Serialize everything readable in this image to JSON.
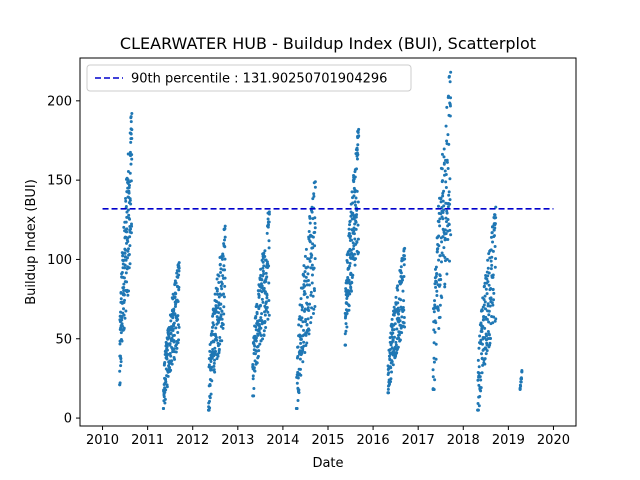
{
  "chart_data": {
    "type": "scatter",
    "title": "CLEARWATER HUB - Buildup Index (BUI), Scatterplot",
    "xlabel": "Date",
    "ylabel": "Buildup Index (BUI)",
    "xlim": [
      2009.5,
      2020.5
    ],
    "ylim": [
      -5,
      227
    ],
    "x_ticks": [
      2010,
      2011,
      2012,
      2013,
      2014,
      2015,
      2016,
      2017,
      2018,
      2019,
      2020
    ],
    "x_tick_labels": [
      "2010",
      "2011",
      "2012",
      "2013",
      "2014",
      "2015",
      "2016",
      "2017",
      "2018",
      "2019",
      "2020"
    ],
    "y_ticks": [
      0,
      50,
      100,
      150,
      200
    ],
    "y_tick_labels": [
      "0",
      "50",
      "100",
      "150",
      "200"
    ],
    "grid": false,
    "legend": {
      "position": "top-left",
      "entries": [
        {
          "label": "90th percentile : 131.90250701904296",
          "style": "dashed-line",
          "color": "#0000cc"
        }
      ]
    },
    "reference_line": {
      "y": 131.90250701904296,
      "x_start": 2010.0,
      "x_end": 2020.0,
      "color": "#0000cc"
    },
    "series": [
      {
        "color": "#1f77b4",
        "seasons": [
          {
            "start": 2010.38,
            "end": 2010.65,
            "lo": 21,
            "hi": 192
          },
          {
            "start": 2011.35,
            "end": 2011.7,
            "lo": 6,
            "hi": 98
          },
          {
            "start": 2012.35,
            "end": 2012.72,
            "lo": 5,
            "hi": 121
          },
          {
            "start": 2013.33,
            "end": 2013.7,
            "lo": 14,
            "hi": 130
          },
          {
            "start": 2014.3,
            "end": 2014.72,
            "lo": 6,
            "hi": 149
          },
          {
            "start": 2015.38,
            "end": 2015.68,
            "lo": 46,
            "hi": 182
          },
          {
            "start": 2016.33,
            "end": 2016.7,
            "lo": 16,
            "hi": 107
          },
          {
            "start": 2017.33,
            "end": 2017.72,
            "lo": 18,
            "hi": 218
          },
          {
            "start": 2018.32,
            "end": 2018.72,
            "lo": 5,
            "hi": 133
          },
          {
            "start": 2019.26,
            "end": 2019.3,
            "lo": 18,
            "hi": 30
          }
        ]
      }
    ]
  }
}
